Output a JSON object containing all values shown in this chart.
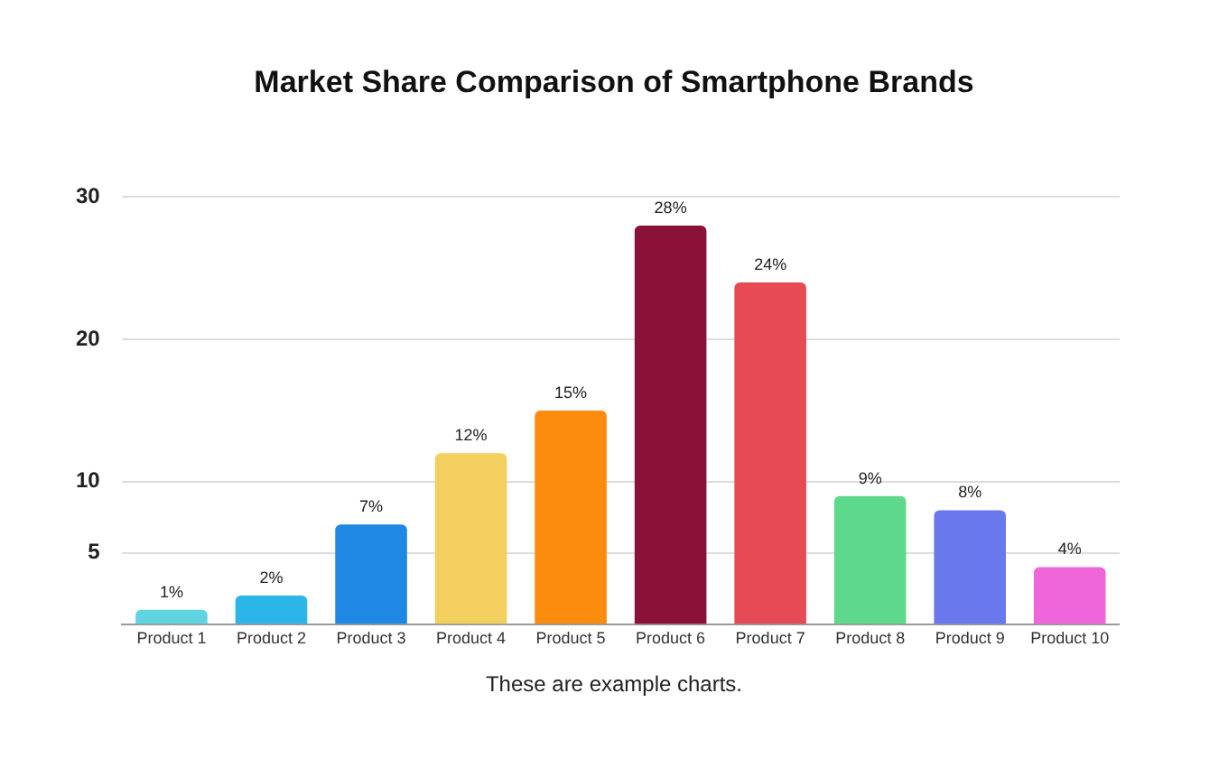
{
  "chart_data": {
    "type": "bar",
    "title": "Market Share Comparison of Smartphone Brands",
    "categories": [
      "Product 1",
      "Product 2",
      "Product 3",
      "Product 4",
      "Product 5",
      "Product 6",
      "Product 7",
      "Product 8",
      "Product 9",
      "Product 10"
    ],
    "values": [
      1,
      2,
      7,
      12,
      15,
      28,
      24,
      9,
      8,
      4
    ],
    "colors": [
      "#5fd3df",
      "#2bb5e8",
      "#1f88e5",
      "#f2cf5f",
      "#fb8c0e",
      "#8a1239",
      "#e54a55",
      "#5ed98c",
      "#6a78ee",
      "#ef66db"
    ],
    "value_labels": [
      "1%",
      "2%",
      "7%",
      "12%",
      "15%",
      "28%",
      "24%",
      "9%",
      "8%",
      "4%"
    ],
    "ylim": [
      0,
      30
    ],
    "yticks": [
      5,
      10,
      20,
      30
    ],
    "grid": "y",
    "annotations": [
      "These are example charts."
    ]
  }
}
